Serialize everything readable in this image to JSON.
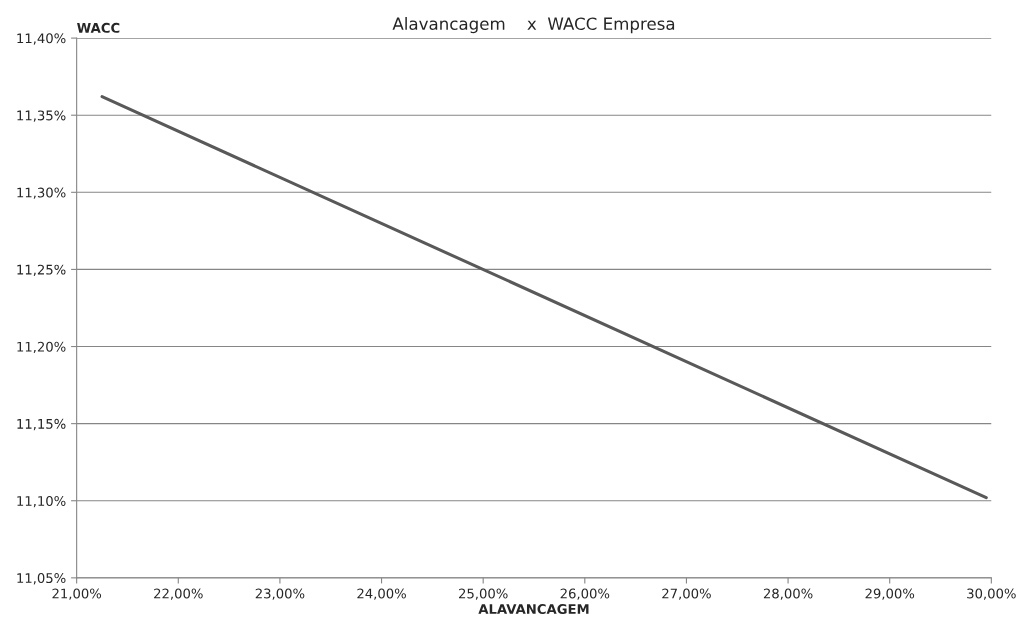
{
  "chart_data": {
    "type": "line",
    "title": "Alavancagem    x  WACC Empresa",
    "xlabel": "ALAVANCAGEM",
    "ylabel": "WACC",
    "x": [
      21.25,
      29.95
    ],
    "series": [
      {
        "color": "#595959",
        "values": [
          11.362,
          11.102
        ]
      }
    ],
    "xlim": [
      21,
      30
    ],
    "ylim": [
      11.05,
      11.4
    ],
    "xticks": [
      {
        "value": 21,
        "label": "21,00%"
      },
      {
        "value": 22,
        "label": "22,00%"
      },
      {
        "value": 23,
        "label": "23,00%"
      },
      {
        "value": 24,
        "label": "24,00%"
      },
      {
        "value": 25,
        "label": "25,00%"
      },
      {
        "value": 26,
        "label": "26,00%"
      },
      {
        "value": 27,
        "label": "27,00%"
      },
      {
        "value": 28,
        "label": "28,00%"
      },
      {
        "value": 29,
        "label": "29,00%"
      },
      {
        "value": 30,
        "label": "30,00%"
      }
    ],
    "yticks": [
      {
        "value": 11.05,
        "label": "11,05%"
      },
      {
        "value": 11.1,
        "label": "11,10%"
      },
      {
        "value": 11.15,
        "label": "11,15%"
      },
      {
        "value": 11.2,
        "label": "11,20%"
      },
      {
        "value": 11.25,
        "label": "11,25%"
      },
      {
        "value": 11.3,
        "label": "11,30%"
      },
      {
        "value": 11.35,
        "label": "11,35%"
      },
      {
        "value": 11.4,
        "label": "11,40%"
      }
    ],
    "grid": "y",
    "marker": "none",
    "line_style": "solid",
    "legend": false
  }
}
